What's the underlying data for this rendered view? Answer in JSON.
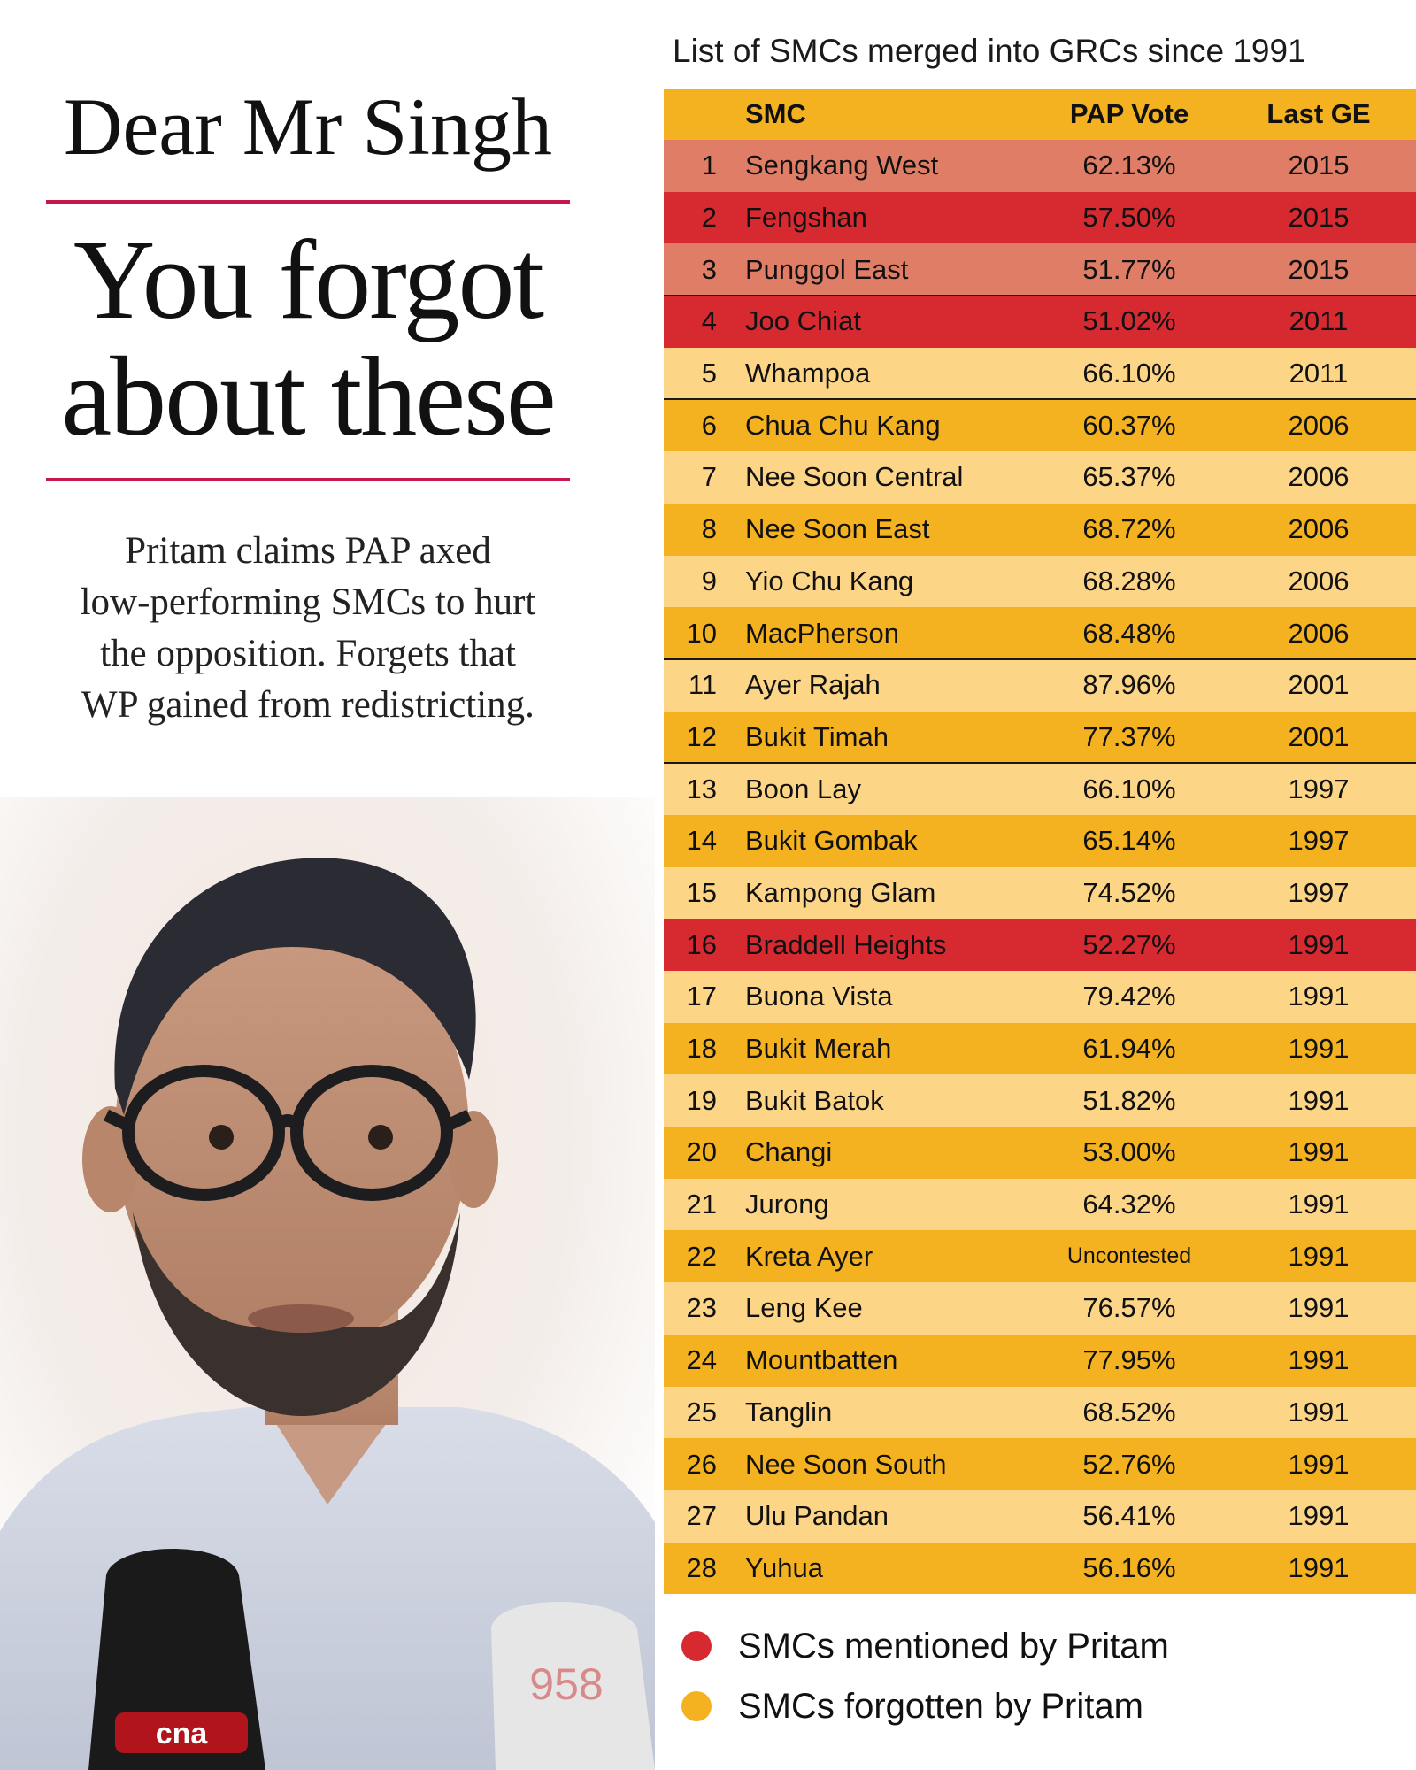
{
  "headline": {
    "line1": "Dear Mr Singh",
    "line2": "You forgot",
    "line3": "about these"
  },
  "lede": {
    "line1": "Pritam claims PAP axed",
    "line2": "low-performing SMCs to hurt",
    "line3": "the opposition. Forgets that",
    "line4": "WP gained from redistricting."
  },
  "photo": {
    "mic_logo_left": "cna",
    "mic_logo_right": "958"
  },
  "table": {
    "caption": "List of SMCs merged into GRCs since 1991",
    "headers": {
      "smc": "SMC",
      "vote": "PAP Vote",
      "ge": "Last GE"
    },
    "rows": [
      {
        "num": "1",
        "name": "Sengkang West",
        "vote": "62.13%",
        "ge": "2015",
        "bg": "#e07d66"
      },
      {
        "num": "2",
        "name": "Fengshan",
        "vote": "57.50%",
        "ge": "2015",
        "bg": "#d72a30"
      },
      {
        "num": "3",
        "name": "Punggol East",
        "vote": "51.77%",
        "ge": "2015",
        "bg": "#e07d66"
      },
      {
        "num": "4",
        "name": "Joo Chiat",
        "vote": "51.02%",
        "ge": "2011",
        "bg": "#d72a30"
      },
      {
        "num": "5",
        "name": "Whampoa",
        "vote": "66.10%",
        "ge": "2011",
        "bg": "#fdd587"
      },
      {
        "num": "6",
        "name": "Chua Chu Kang",
        "vote": "60.37%",
        "ge": "2006",
        "bg": "#f4b221"
      },
      {
        "num": "7",
        "name": "Nee Soon Central",
        "vote": "65.37%",
        "ge": "2006",
        "bg": "#fdd587"
      },
      {
        "num": "8",
        "name": "Nee Soon East",
        "vote": "68.72%",
        "ge": "2006",
        "bg": "#f4b221"
      },
      {
        "num": "9",
        "name": "Yio Chu Kang",
        "vote": "68.28%",
        "ge": "2006",
        "bg": "#fdd587"
      },
      {
        "num": "10",
        "name": "MacPherson",
        "vote": "68.48%",
        "ge": "2006",
        "bg": "#f4b221"
      },
      {
        "num": "11",
        "name": "Ayer Rajah",
        "vote": "87.96%",
        "ge": "2001",
        "bg": "#fdd587"
      },
      {
        "num": "12",
        "name": "Bukit Timah",
        "vote": "77.37%",
        "ge": "2001",
        "bg": "#f4b221"
      },
      {
        "num": "13",
        "name": "Boon Lay",
        "vote": "66.10%",
        "ge": "1997",
        "bg": "#fdd587"
      },
      {
        "num": "14",
        "name": "Bukit Gombak",
        "vote": "65.14%",
        "ge": "1997",
        "bg": "#f4b221"
      },
      {
        "num": "15",
        "name": "Kampong Glam",
        "vote": "74.52%",
        "ge": "1997",
        "bg": "#fdd587"
      },
      {
        "num": "16",
        "name": "Braddell Heights",
        "vote": "52.27%",
        "ge": "1991",
        "bg": "#d72a30"
      },
      {
        "num": "17",
        "name": "Buona Vista",
        "vote": "79.42%",
        "ge": "1991",
        "bg": "#fdd587"
      },
      {
        "num": "18",
        "name": "Bukit Merah",
        "vote": "61.94%",
        "ge": "1991",
        "bg": "#f4b221"
      },
      {
        "num": "19",
        "name": "Bukit Batok",
        "vote": "51.82%",
        "ge": "1991",
        "bg": "#fdd587"
      },
      {
        "num": "20",
        "name": "Changi",
        "vote": "53.00%",
        "ge": "1991",
        "bg": "#f4b221"
      },
      {
        "num": "21",
        "name": "Jurong",
        "vote": "64.32%",
        "ge": "1991",
        "bg": "#fdd587"
      },
      {
        "num": "22",
        "name": "Kreta Ayer",
        "vote": "Uncontested",
        "ge": "1991",
        "bg": "#f4b221"
      },
      {
        "num": "23",
        "name": "Leng Kee",
        "vote": "76.57%",
        "ge": "1991",
        "bg": "#fdd587"
      },
      {
        "num": "24",
        "name": "Mountbatten",
        "vote": "77.95%",
        "ge": "1991",
        "bg": "#f4b221"
      },
      {
        "num": "25",
        "name": "Tanglin",
        "vote": "68.52%",
        "ge": "1991",
        "bg": "#fdd587"
      },
      {
        "num": "26",
        "name": "Nee Soon South",
        "vote": "52.76%",
        "ge": "1991",
        "bg": "#f4b221"
      },
      {
        "num": "27",
        "name": "Ulu Pandan",
        "vote": "56.41%",
        "ge": "1991",
        "bg": "#fdd587"
      },
      {
        "num": "28",
        "name": "Yuhua",
        "vote": "56.16%",
        "ge": "1991",
        "bg": "#f4b221"
      }
    ]
  },
  "legend": [
    {
      "label": "SMCs mentioned by Pritam",
      "color": "#d72a30"
    },
    {
      "label": "SMCs forgotten by Pritam",
      "color": "#f4b221"
    }
  ]
}
